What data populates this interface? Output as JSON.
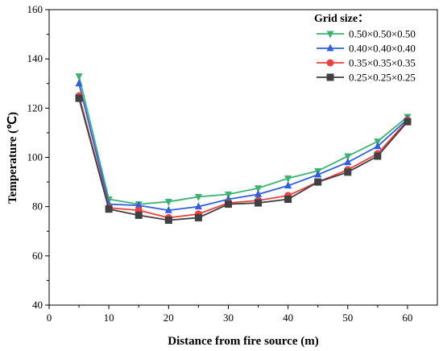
{
  "chart_data": {
    "type": "line",
    "xlabel": "Distance from fire source (m)",
    "ylabel": "Temperature (℃)",
    "xlim": [
      0,
      65
    ],
    "ylim": [
      40,
      160
    ],
    "x_ticks": [
      "0",
      "10",
      "20",
      "30",
      "40",
      "50",
      "60"
    ],
    "y_ticks": [
      "40",
      "60",
      "80",
      "100",
      "120",
      "140",
      "160"
    ],
    "legend_title": "Grid size：",
    "legend_position": "top-right",
    "x": [
      5,
      10,
      15,
      20,
      25,
      30,
      35,
      40,
      45,
      50,
      55,
      60
    ],
    "series": [
      {
        "name": "0.50×0.50×0.50",
        "color": "#3cb371",
        "marker": "triangle-down",
        "values": [
          133,
          83,
          81,
          82,
          84,
          85,
          87.5,
          91.5,
          94.5,
          100.5,
          106.5,
          116.5
        ]
      },
      {
        "name": "0.40×0.40×0.40",
        "color": "#2f5ee0",
        "marker": "triangle-up",
        "values": [
          130,
          81,
          80.5,
          78.5,
          80,
          83,
          85,
          88.5,
          93,
          98,
          104.5,
          115.5
        ]
      },
      {
        "name": "0.35×0.35×0.35",
        "color": "#ee4040",
        "marker": "circle",
        "values": [
          125,
          79.5,
          78.5,
          75.5,
          77,
          81.5,
          82.5,
          84.5,
          90,
          95,
          101.5,
          115
        ]
      },
      {
        "name": "0.25×0.25×0.25",
        "color": "#404040",
        "marker": "square",
        "values": [
          124,
          79,
          76.5,
          74.5,
          75.5,
          81,
          81.5,
          83,
          90,
          94,
          100.5,
          114.5
        ]
      }
    ]
  }
}
